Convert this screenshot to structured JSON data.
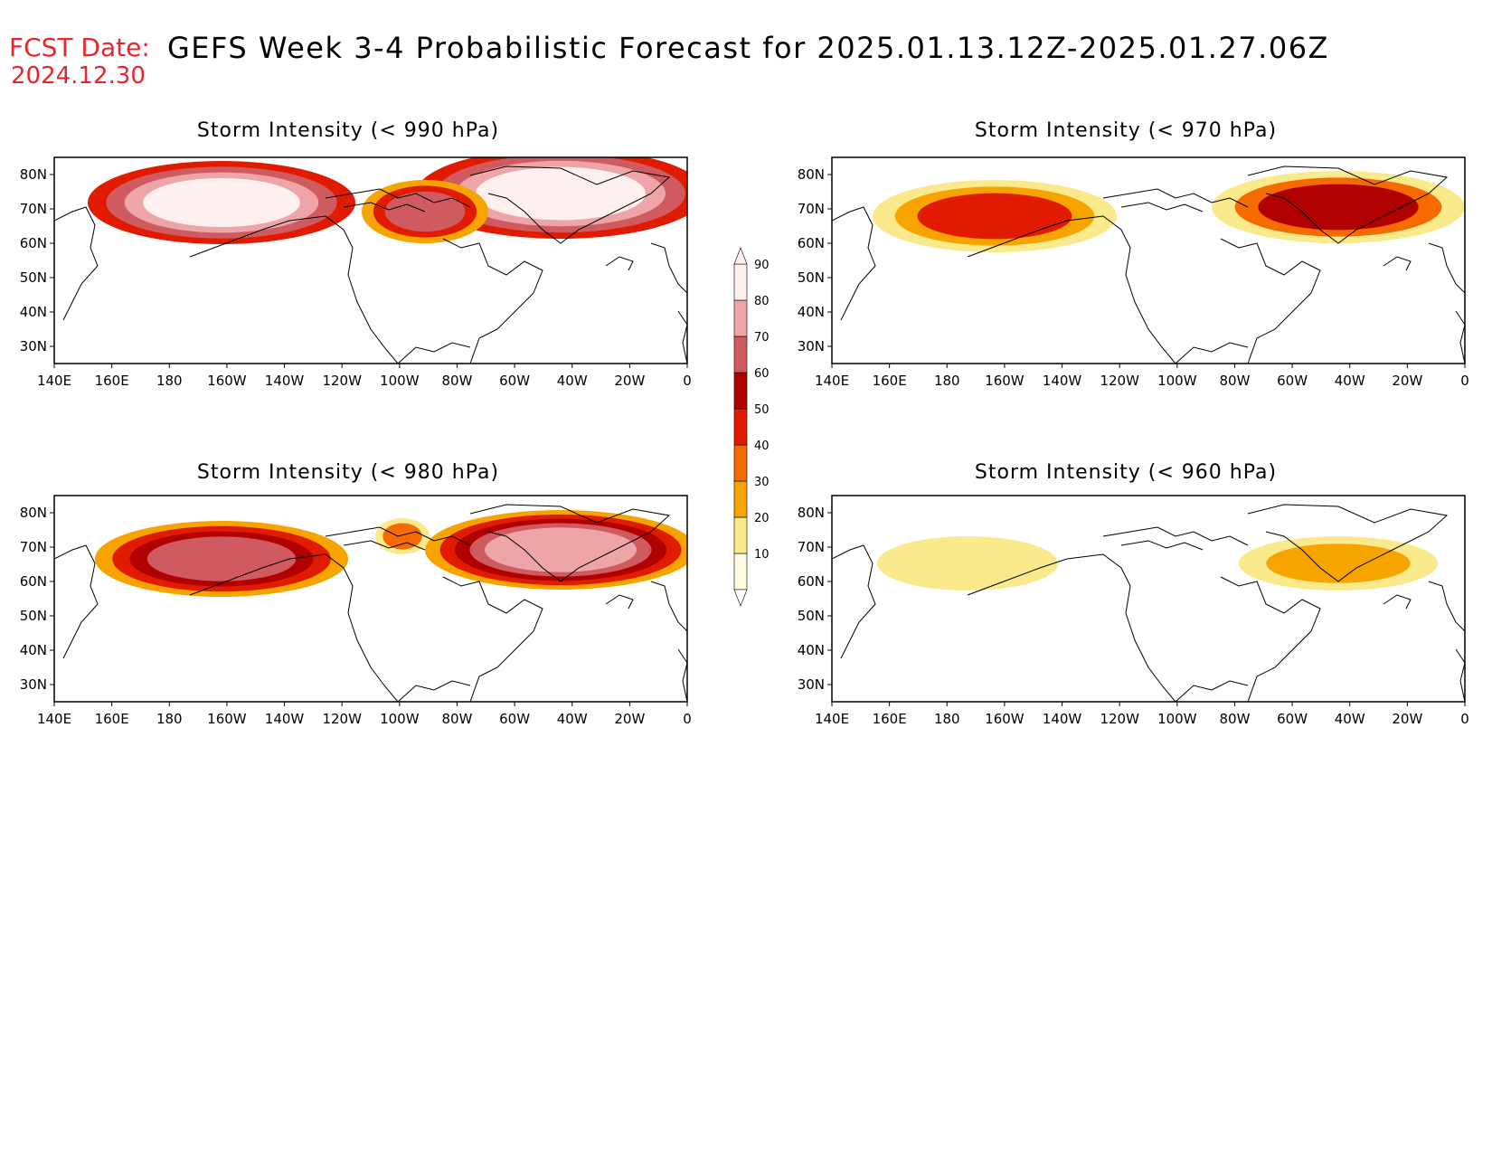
{
  "header": {
    "fcst_label": "FCST Date:",
    "fcst_date": "2024.12.30",
    "title": "GEFS Week 3-4 Probabilistic Forecast for 2025.01.13.12Z-2025.01.27.06Z"
  },
  "axes": {
    "lon_labels": [
      "140E",
      "160E",
      "180",
      "160W",
      "140W",
      "120W",
      "100W",
      "80W",
      "60W",
      "40W",
      "20W",
      "0"
    ],
    "lat_labels": [
      "80N",
      "70N",
      "60N",
      "50N",
      "40N",
      "30N"
    ]
  },
  "panels": [
    {
      "id": "p990",
      "title": "Storm Intensity (< 990 hPa)",
      "blobs": [
        {
          "cx": 185,
          "cy": 50,
          "rx": 148,
          "ry": 46,
          "levels": [
            4,
            6,
            7,
            8
          ]
        },
        {
          "cx": 560,
          "cy": 40,
          "rx": 160,
          "ry": 50,
          "levels": [
            4,
            6,
            7,
            8
          ]
        },
        {
          "cx": 410,
          "cy": 60,
          "rx": 70,
          "ry": 35,
          "levels": [
            2,
            4,
            6
          ]
        }
      ]
    },
    {
      "id": "p970",
      "title": "Storm Intensity (< 970 hPa)",
      "blobs": [
        {
          "cx": 180,
          "cy": 65,
          "rx": 135,
          "ry": 40,
          "levels": [
            1,
            2,
            4
          ]
        },
        {
          "cx": 560,
          "cy": 55,
          "rx": 140,
          "ry": 40,
          "levels": [
            1,
            3,
            5
          ]
        }
      ]
    },
    {
      "id": "p980",
      "title": "Storm Intensity (< 980 hPa)",
      "blobs": [
        {
          "cx": 185,
          "cy": 70,
          "rx": 140,
          "ry": 42,
          "levels": [
            2,
            4,
            5,
            6
          ]
        },
        {
          "cx": 560,
          "cy": 60,
          "rx": 150,
          "ry": 44,
          "levels": [
            2,
            4,
            5,
            6,
            7
          ]
        },
        {
          "cx": 385,
          "cy": 45,
          "rx": 30,
          "ry": 20,
          "levels": [
            1,
            3
          ]
        }
      ]
    },
    {
      "id": "p960",
      "title": "Storm Intensity (< 960 hPa)",
      "blobs": [
        {
          "cx": 150,
          "cy": 75,
          "rx": 100,
          "ry": 30,
          "levels": [
            1
          ]
        },
        {
          "cx": 560,
          "cy": 75,
          "rx": 110,
          "ry": 30,
          "levels": [
            1,
            2
          ]
        }
      ]
    }
  ],
  "legend": {
    "labels": [
      "10",
      "20",
      "30",
      "40",
      "50",
      "60",
      "70",
      "80",
      "90"
    ],
    "colors": [
      "#fffbe0",
      "#fbea8c",
      "#f7a300",
      "#f56b00",
      "#e11b00",
      "#b00000",
      "#cf5b60",
      "#eea5a8",
      "#fff0f0"
    ]
  },
  "map_colors": {
    "frame": "#000000",
    "coast": "#000000"
  }
}
